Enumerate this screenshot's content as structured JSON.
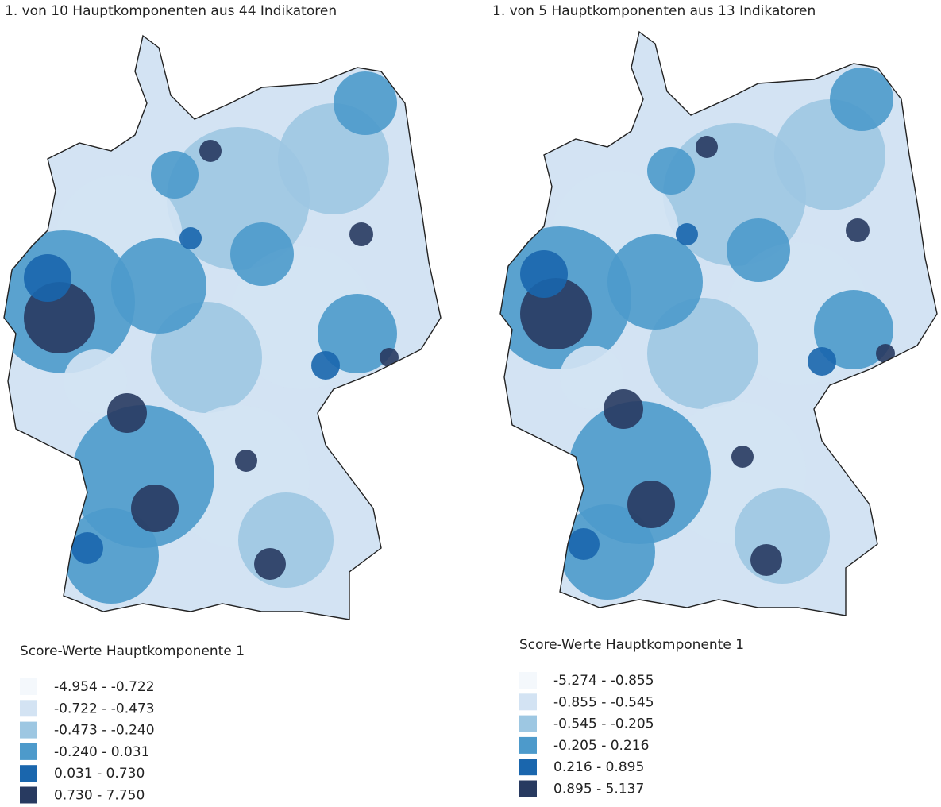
{
  "maps": [
    {
      "title": "1. von 10 Hauptkomponenten aus 44 Indikatoren",
      "legend": {
        "title": "Score-Werte Hauptkomponente 1",
        "items": [
          {
            "label": "-4.954 - -0.722",
            "color": "#f4f8fc"
          },
          {
            "label": "-0.722 - -0.473",
            "color": "#d3e3f3"
          },
          {
            "label": "-0.473 - -0.240",
            "color": "#9dc7e2"
          },
          {
            "label": "-0.240 - 0.031",
            "color": "#4d9acb"
          },
          {
            "label": "0.031 - 0.730",
            "color": "#1a66ad"
          },
          {
            "label": "0.730 - 7.750",
            "color": "#283a60"
          }
        ]
      }
    },
    {
      "title": "1. von 5 Hauptkomponenten aus 13 Indikatoren",
      "legend": {
        "title": "Score-Werte Hauptkomponente 1",
        "items": [
          {
            "label": "-5.274 - -0.855",
            "color": "#f4f8fc"
          },
          {
            "label": "-0.855 - -0.545",
            "color": "#d3e3f3"
          },
          {
            "label": "-0.545 - -0.205",
            "color": "#9dc7e2"
          },
          {
            "label": "-0.205 - 0.216",
            "color": "#4d9acb"
          },
          {
            "label": "0.216 - 0.895",
            "color": "#1a66ad"
          },
          {
            "label": "0.895 - 5.137",
            "color": "#283a60"
          }
        ]
      }
    }
  ]
}
